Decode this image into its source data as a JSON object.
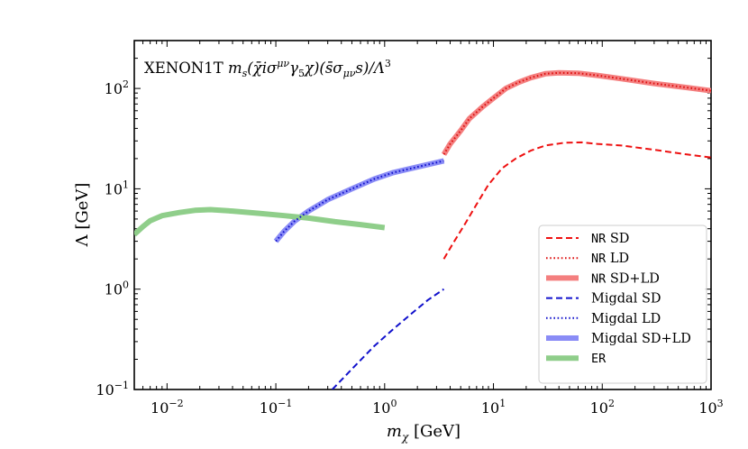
{
  "chart_data": {
    "type": "line",
    "title": "XENON1T m_s(χ̄ iσ^{μν}γ5 χ)(s̄ σ_{μν} s)/Λ³",
    "title_parts": {
      "experiment": "XENON1T",
      "operator": "m",
      "operator_sub": "s",
      "bilinear": "(χ̄iσ",
      "bilinear_sup": "μν",
      "gamma": "γ",
      "gamma_sub": "5",
      "chi_close": "χ)(s̄σ",
      "sigma_sub": "μν",
      "s_close": "s)/Λ",
      "power": "3"
    },
    "xlabel": "m",
    "xlabel_sub": "χ",
    "xlabel_unit": "[GeV]",
    "ylabel": "Λ [GeV]",
    "xscale": "log",
    "yscale": "log",
    "xlim": [
      0.005,
      1000
    ],
    "ylim": [
      0.1,
      300
    ],
    "x_ticks": [
      {
        "base": "10",
        "exp": "−2",
        "value": 0.01
      },
      {
        "base": "10",
        "exp": "−1",
        "value": 0.1
      },
      {
        "base": "10",
        "exp": "0",
        "value": 1
      },
      {
        "base": "10",
        "exp": "1",
        "value": 10
      },
      {
        "base": "10",
        "exp": "2",
        "value": 100
      },
      {
        "base": "10",
        "exp": "3",
        "value": 1000
      }
    ],
    "y_ticks": [
      {
        "base": "10",
        "exp": "−1",
        "value": 0.1
      },
      {
        "base": "10",
        "exp": "0",
        "value": 1
      },
      {
        "base": "10",
        "exp": "1",
        "value": 10
      },
      {
        "base": "10",
        "exp": "2",
        "value": 100
      }
    ],
    "legend_position": "lower-right",
    "series": [
      {
        "name": "NR SD",
        "name_mono": "NR",
        "name_rest": "SD",
        "color": "#ee1111",
        "style": "dashed",
        "width": 2,
        "opacity": 1,
        "x": [
          3.5,
          4.2,
          5.5,
          7,
          9,
          12,
          16,
          22,
          30,
          45,
          65,
          90,
          150,
          300,
          600,
          1000
        ],
        "y": [
          2.0,
          2.8,
          4.5,
          7,
          11,
          16,
          20,
          24,
          27,
          28.8,
          29,
          28,
          27,
          24.5,
          22,
          20.5
        ]
      },
      {
        "name": "NR LD",
        "name_mono": "NR",
        "name_rest": "LD",
        "color": "#dd1111",
        "style": "dotted",
        "width": 2,
        "opacity": 1,
        "x": [
          3.5,
          4,
          5,
          6,
          8,
          10,
          13,
          17,
          22,
          30,
          40,
          60,
          90,
          150,
          300,
          600,
          1000
        ],
        "y": [
          22,
          28,
          38,
          50,
          66,
          80,
          100,
          115,
          128,
          140,
          143,
          142,
          135,
          125,
          112,
          102,
          95
        ]
      },
      {
        "name": "NR SD+LD",
        "name_mono": "NR",
        "name_rest": "SD+LD",
        "color": "#f47f7f",
        "style": "solid",
        "width": 6,
        "opacity": 1,
        "x": [
          3.5,
          4,
          5,
          6,
          8,
          10,
          13,
          17,
          22,
          30,
          40,
          60,
          90,
          150,
          300,
          600,
          1000
        ],
        "y": [
          22,
          28,
          38,
          50,
          66,
          80,
          100,
          115,
          128,
          140,
          143,
          142,
          135,
          125,
          112,
          102,
          95
        ]
      },
      {
        "name": "Migdal SD",
        "name_mono": "",
        "name_rest": "Migdal SD",
        "color": "#1111cc",
        "style": "dashed",
        "width": 2,
        "opacity": 1,
        "x": [
          0.33,
          0.5,
          0.8,
          1.2,
          1.8,
          2.5,
          3.5
        ],
        "y": [
          0.1,
          0.16,
          0.27,
          0.4,
          0.58,
          0.78,
          1.0
        ]
      },
      {
        "name": "Migdal LD",
        "name_mono": "",
        "name_rest": "Migdal LD",
        "color": "#1111cc",
        "style": "dotted",
        "width": 2,
        "opacity": 1,
        "x": [
          0.1,
          0.12,
          0.15,
          0.2,
          0.3,
          0.5,
          0.8,
          1.2,
          2,
          3.5
        ],
        "y": [
          3.0,
          3.8,
          4.8,
          6.0,
          7.8,
          10,
          12.5,
          14.5,
          16.5,
          19
        ]
      },
      {
        "name": "Migdal SD+LD",
        "name_mono": "",
        "name_rest": "Migdal SD+LD",
        "color": "#8a8cf6",
        "style": "solid",
        "width": 6,
        "opacity": 1,
        "x": [
          0.1,
          0.12,
          0.15,
          0.2,
          0.3,
          0.5,
          0.8,
          1.2,
          2,
          3.5
        ],
        "y": [
          3.0,
          3.8,
          4.8,
          6.0,
          7.8,
          10,
          12.5,
          14.5,
          16.5,
          19
        ]
      },
      {
        "name": "ER",
        "name_mono": "ER",
        "name_rest": "",
        "color": "#8fce8a",
        "style": "solid",
        "width": 6,
        "opacity": 1,
        "x": [
          0.005,
          0.006,
          0.007,
          0.009,
          0.013,
          0.018,
          0.025,
          0.04,
          0.07,
          0.12,
          0.2,
          0.35,
          0.6,
          1.0
        ],
        "y": [
          3.5,
          4.2,
          4.8,
          5.4,
          5.8,
          6.1,
          6.2,
          6.0,
          5.7,
          5.4,
          5.1,
          4.7,
          4.4,
          4.1
        ]
      }
    ]
  }
}
